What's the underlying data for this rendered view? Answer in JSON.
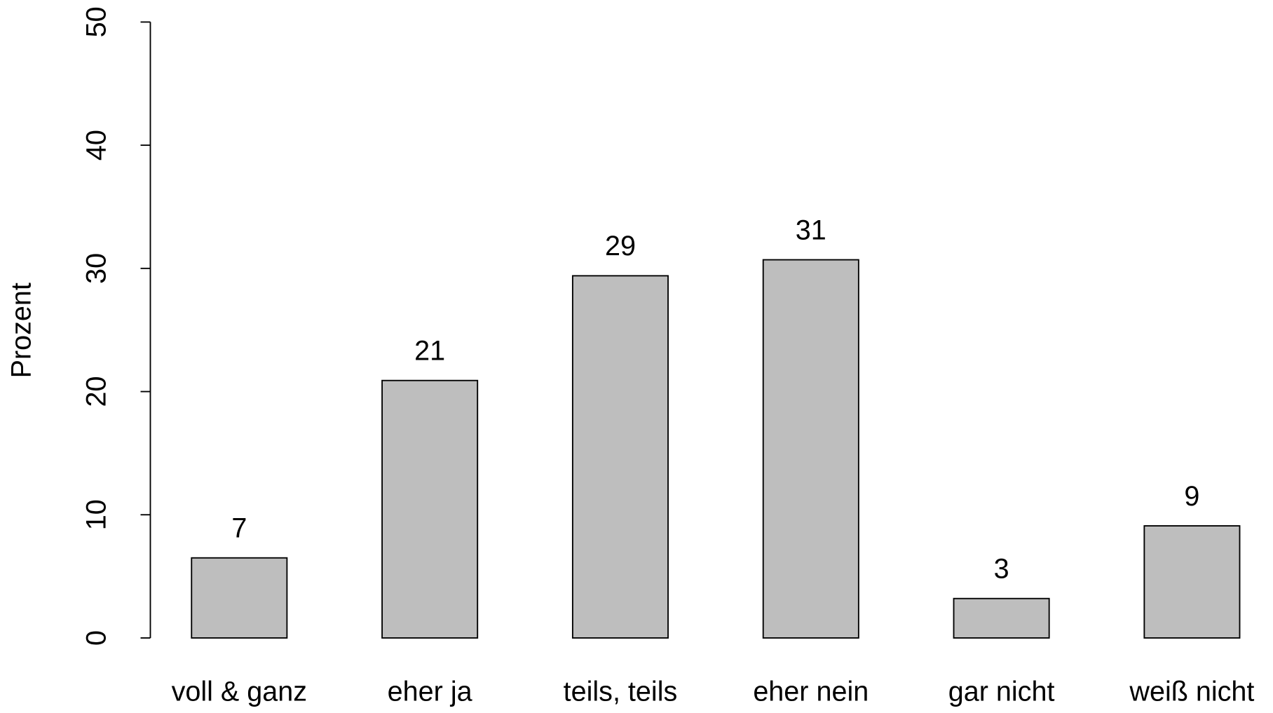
{
  "chart_data": {
    "type": "bar",
    "y_label": "Prozent",
    "categories": [
      "voll & ganz",
      "eher ja",
      "teils, teils",
      "eher nein",
      "gar nicht",
      "weiß nicht"
    ],
    "values": [
      6.5,
      20.9,
      29.4,
      30.7,
      3.2,
      9.1
    ],
    "value_labels": [
      "7",
      "21",
      "29",
      "31",
      "3",
      "9"
    ],
    "color": "#bebebe",
    "ylim": [
      0,
      50
    ],
    "yticks": [
      0,
      10,
      20,
      30,
      40,
      50
    ],
    "grid": false
  }
}
